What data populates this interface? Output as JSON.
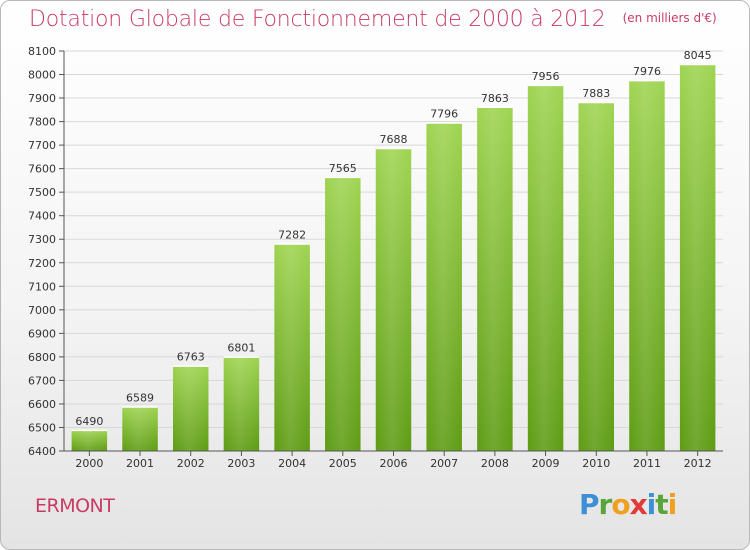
{
  "title": "Dotation Globale de Fonctionnement de 2000 à 2012",
  "unit_label": "(en milliers d'€)",
  "commune": "ERMONT",
  "logo": {
    "text": "Proxiti",
    "letters": [
      {
        "ch": "P",
        "color": "#3d8fd6"
      },
      {
        "ch": "r",
        "color": "#5aa53a"
      },
      {
        "ch": "o",
        "color": "#f0a020"
      },
      {
        "ch": "x",
        "color": "#e23a3a"
      },
      {
        "ch": "i",
        "color": "#3d8fd6"
      },
      {
        "ch": "t",
        "color": "#5aa53a"
      },
      {
        "ch": "i",
        "color": "#f0a020"
      }
    ]
  },
  "colors": {
    "title": "#c83c64",
    "bar_top": "#9fd452",
    "bar_bottom": "#5e9c14",
    "grid": "#d8d8d8"
  },
  "chart_data": {
    "type": "bar",
    "categories": [
      "2000",
      "2001",
      "2002",
      "2003",
      "2004",
      "2005",
      "2006",
      "2007",
      "2008",
      "2009",
      "2010",
      "2011",
      "2012"
    ],
    "values": [
      6490,
      6589,
      6763,
      6801,
      7282,
      7565,
      7688,
      7796,
      7863,
      7956,
      7883,
      7976,
      8045
    ],
    "ylim": [
      6400,
      8100
    ],
    "yticks": [
      6400,
      6500,
      6600,
      6700,
      6800,
      6900,
      7000,
      7100,
      7200,
      7300,
      7400,
      7500,
      7600,
      7700,
      7800,
      7900,
      8000,
      8100
    ],
    "grid": true,
    "data_labels": true
  }
}
